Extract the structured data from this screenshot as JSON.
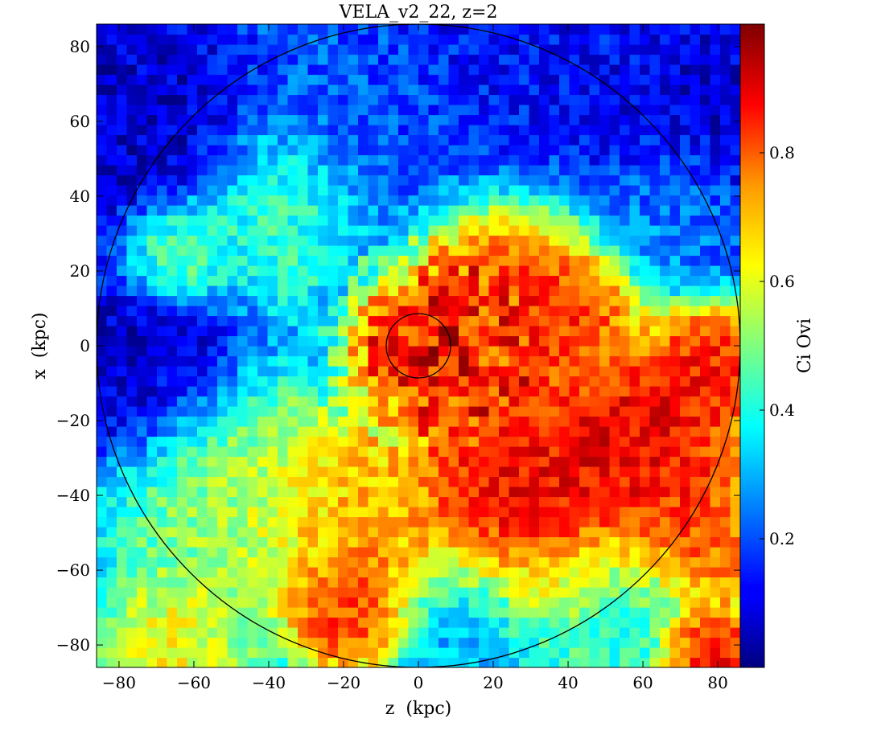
{
  "chart_data": {
    "type": "heatmap",
    "title": "VELA_v2_22, z=2",
    "xlabel": "z  (kpc)",
    "ylabel": "x  (kpc)",
    "colorbar_label": "Ci Ovi",
    "xlim": [
      -86,
      86
    ],
    "ylim": [
      -86,
      86
    ],
    "xticks": [
      -80,
      -60,
      -40,
      -20,
      0,
      20,
      40,
      60,
      80
    ],
    "yticks": [
      -80,
      -60,
      -40,
      -20,
      0,
      20,
      40,
      60,
      80
    ],
    "clim": [
      0,
      1
    ],
    "cticks": [
      0.2,
      0.4,
      0.6,
      0.8
    ],
    "colormap": "jet",
    "circles_kpc": [
      {
        "center": [
          0,
          0
        ],
        "radius": 86
      },
      {
        "center": [
          0,
          0
        ],
        "radius": 8.6
      }
    ],
    "regions": [
      {
        "center": [
          -80,
          60
        ],
        "sigma": 18,
        "value": 0.05
      },
      {
        "center": [
          -75,
          -5
        ],
        "sigma": 14,
        "value": 0.04
      },
      {
        "center": [
          -35,
          35
        ],
        "sigma": 12,
        "value": 0.45
      },
      {
        "center": [
          -65,
          25
        ],
        "sigma": 8,
        "value": 0.55
      },
      {
        "center": [
          30,
          80
        ],
        "sigma": 20,
        "value": 0.12
      },
      {
        "center": [
          78,
          60
        ],
        "sigma": 16,
        "value": 0.05
      },
      {
        "center": [
          0,
          0
        ],
        "sigma": 9,
        "value": 0.95
      },
      {
        "center": [
          22,
          12
        ],
        "sigma": 14,
        "value": 0.9
      },
      {
        "center": [
          40,
          8
        ],
        "sigma": 8,
        "value": 0.85
      },
      {
        "center": [
          15,
          -15
        ],
        "sigma": 10,
        "value": 0.88
      },
      {
        "center": [
          30,
          -45
        ],
        "sigma": 18,
        "value": 0.95
      },
      {
        "center": [
          60,
          -25
        ],
        "sigma": 14,
        "value": 0.95
      },
      {
        "center": [
          78,
          -5
        ],
        "sigma": 8,
        "value": 0.9
      },
      {
        "center": [
          75,
          -50
        ],
        "sigma": 10,
        "value": 0.85
      },
      {
        "center": [
          -20,
          -45
        ],
        "sigma": 14,
        "value": 0.75
      },
      {
        "center": [
          -18,
          -70
        ],
        "sigma": 9,
        "value": 0.9
      },
      {
        "center": [
          -50,
          -40
        ],
        "sigma": 16,
        "value": 0.55
      },
      {
        "center": [
          -65,
          -80
        ],
        "sigma": 10,
        "value": 0.65
      },
      {
        "center": [
          15,
          -75
        ],
        "sigma": 12,
        "value": 0.25
      },
      {
        "center": [
          50,
          -70
        ],
        "sigma": 12,
        "value": 0.4
      },
      {
        "center": [
          78,
          -82
        ],
        "sigma": 7,
        "value": 0.95
      },
      {
        "center": [
          -10,
          55
        ],
        "sigma": 14,
        "value": 0.2
      },
      {
        "center": [
          70,
          40
        ],
        "sigma": 10,
        "value": 0.3
      }
    ]
  }
}
